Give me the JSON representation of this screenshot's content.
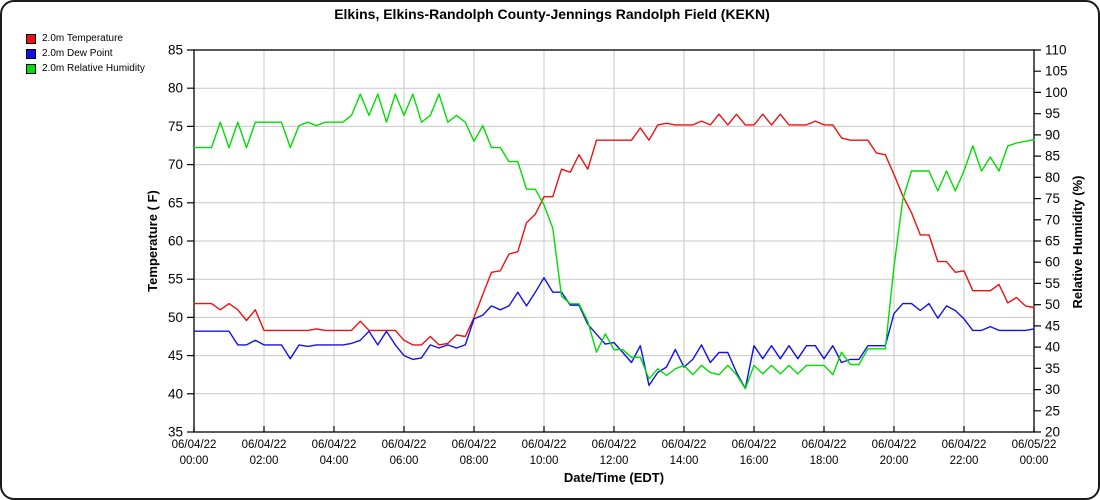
{
  "title": "Elkins, Elkins-Randolph County-Jennings Randolph Field (KEKN)",
  "legend": [
    {
      "label": "2.0m Temperature",
      "color": "#ee1111"
    },
    {
      "label": "2.0m Dew Point",
      "color": "#1111ee"
    },
    {
      "label": "2.0m Relative Humidity",
      "color": "#00dd00"
    }
  ],
  "axes": {
    "left_title": "Temperature ( F)",
    "right_title": "Relative Humidity (%)",
    "bottom_title": "Date/Time (EDT)"
  },
  "colors": {
    "grid": "#c8c8c8",
    "axis": "#000000",
    "background": "#ffffff"
  },
  "chart_data": {
    "type": "line",
    "title": "Elkins, Elkins-Randolph County-Jennings Randolph Field (KEKN)",
    "xlabel": "Date/Time (EDT)",
    "ylabel_left": "Temperature ( F)",
    "ylabel_right": "Relative Humidity (%)",
    "grid": true,
    "legend_position": "top-left",
    "x_unit_hours_from": "06/04/22 00:00 EDT",
    "x_range": [
      0,
      24
    ],
    "y_left_range": [
      35,
      85
    ],
    "y_right_range": [
      20,
      110
    ],
    "y_left_ticks": [
      35,
      40,
      45,
      50,
      55,
      60,
      65,
      70,
      75,
      80,
      85
    ],
    "y_right_ticks": [
      20,
      25,
      30,
      35,
      40,
      45,
      50,
      55,
      60,
      65,
      70,
      75,
      80,
      85,
      90,
      95,
      100,
      105,
      110
    ],
    "x_ticks": [
      {
        "hour": 0,
        "date": "06/04/22",
        "time": "00:00"
      },
      {
        "hour": 2,
        "date": "06/04/22",
        "time": "02:00"
      },
      {
        "hour": 4,
        "date": "06/04/22",
        "time": "04:00"
      },
      {
        "hour": 6,
        "date": "06/04/22",
        "time": "06:00"
      },
      {
        "hour": 8,
        "date": "06/04/22",
        "time": "08:00"
      },
      {
        "hour": 10,
        "date": "06/04/22",
        "time": "10:00"
      },
      {
        "hour": 12,
        "date": "06/04/22",
        "time": "12:00"
      },
      {
        "hour": 14,
        "date": "06/04/22",
        "time": "14:00"
      },
      {
        "hour": 16,
        "date": "06/04/22",
        "time": "16:00"
      },
      {
        "hour": 18,
        "date": "06/04/22",
        "time": "18:00"
      },
      {
        "hour": 20,
        "date": "06/04/22",
        "time": "20:00"
      },
      {
        "hour": 22,
        "date": "06/04/22",
        "time": "22:00"
      },
      {
        "hour": 24,
        "date": "06/05/22",
        "time": "00:00"
      }
    ],
    "x": [
      0,
      0.25,
      0.5,
      0.75,
      1,
      1.25,
      1.5,
      1.75,
      2,
      2.25,
      2.5,
      2.75,
      3,
      3.25,
      3.5,
      3.75,
      4,
      4.25,
      4.5,
      4.75,
      5,
      5.25,
      5.5,
      5.75,
      6,
      6.25,
      6.5,
      6.75,
      7,
      7.25,
      7.5,
      7.75,
      8,
      8.25,
      8.5,
      8.75,
      9,
      9.25,
      9.5,
      9.75,
      10,
      10.25,
      10.5,
      10.75,
      11,
      11.25,
      11.5,
      11.75,
      12,
      12.25,
      12.5,
      12.75,
      13,
      13.25,
      13.5,
      13.75,
      14,
      14.25,
      14.5,
      14.75,
      15,
      15.25,
      15.5,
      15.75,
      16,
      16.25,
      16.5,
      16.75,
      17,
      17.25,
      17.5,
      17.75,
      18,
      18.25,
      18.5,
      18.75,
      19,
      19.25,
      19.5,
      19.75,
      20,
      20.25,
      20.5,
      20.75,
      21,
      21.25,
      21.5,
      21.75,
      22,
      22.25,
      22.5,
      22.75,
      23,
      23.25,
      23.5,
      23.75,
      24
    ],
    "series": [
      {
        "name": "2.0m Temperature",
        "axis": "left",
        "color": "#ee1111",
        "values": [
          51.8,
          51.8,
          51.8,
          51.0,
          51.8,
          51.0,
          49.6,
          51.0,
          48.3,
          48.3,
          48.3,
          48.3,
          48.3,
          48.3,
          48.5,
          48.3,
          48.3,
          48.3,
          48.3,
          49.5,
          48.3,
          48.3,
          48.3,
          48.3,
          47.0,
          46.4,
          46.4,
          47.5,
          46.4,
          46.6,
          47.7,
          47.5,
          50.0,
          53.0,
          55.9,
          56.1,
          58.3,
          58.6,
          62.4,
          63.5,
          65.8,
          65.8,
          69.4,
          69.0,
          71.3,
          69.4,
          73.2,
          73.2,
          73.2,
          73.2,
          73.2,
          74.8,
          73.2,
          75.2,
          75.4,
          75.2,
          75.2,
          75.2,
          75.7,
          75.2,
          76.6,
          75.2,
          76.6,
          75.2,
          75.2,
          76.6,
          75.2,
          76.6,
          75.2,
          75.2,
          75.2,
          75.7,
          75.2,
          75.2,
          73.5,
          73.2,
          73.2,
          73.2,
          71.5,
          71.3,
          68.7,
          65.9,
          63.7,
          60.8,
          60.8,
          57.3,
          57.3,
          55.9,
          56.1,
          53.5,
          53.5,
          53.5,
          54.3,
          51.9,
          52.6,
          51.5,
          51.3
        ]
      },
      {
        "name": "2.0m Dew Point",
        "axis": "left",
        "color": "#1111ee",
        "values": [
          48.2,
          48.2,
          48.2,
          48.2,
          48.2,
          46.4,
          46.4,
          47.0,
          46.4,
          46.4,
          46.4,
          44.6,
          46.4,
          46.2,
          46.4,
          46.4,
          46.4,
          46.4,
          46.6,
          47.0,
          48.2,
          46.4,
          48.2,
          46.4,
          45.0,
          44.5,
          44.7,
          46.4,
          46.0,
          46.4,
          46.0,
          46.4,
          49.8,
          50.3,
          51.5,
          51.0,
          51.5,
          53.3,
          51.5,
          53.3,
          55.2,
          53.3,
          53.3,
          51.6,
          51.6,
          49.1,
          47.8,
          46.5,
          46.7,
          45.4,
          44.1,
          46.3,
          41.1,
          42.8,
          43.5,
          45.8,
          43.5,
          44.5,
          46.4,
          44.1,
          45.4,
          45.4,
          42.8,
          40.7,
          46.3,
          44.6,
          46.3,
          44.6,
          46.3,
          44.6,
          46.3,
          46.3,
          44.6,
          46.3,
          44.1,
          44.5,
          44.5,
          46.3,
          46.3,
          46.3,
          50.5,
          51.8,
          51.8,
          50.9,
          51.8,
          49.9,
          51.5,
          50.9,
          49.8,
          48.3,
          48.3,
          48.8,
          48.3,
          48.3,
          48.3,
          48.3,
          48.5
        ]
      },
      {
        "name": "2.0m Relative Humidity",
        "axis": "right",
        "color": "#00dd00",
        "values": [
          87,
          87,
          87,
          93,
          87,
          93,
          87,
          93,
          93,
          93,
          93,
          87,
          92.2,
          93,
          92.2,
          93,
          93,
          93,
          94.6,
          99.6,
          94.6,
          99.6,
          93,
          99.6,
          94.6,
          99.6,
          93,
          94.6,
          99.6,
          93,
          94.6,
          93,
          88.5,
          92.2,
          87,
          87,
          83.7,
          83.7,
          77.2,
          77.2,
          73.5,
          68.0,
          52.0,
          50.2,
          50.2,
          46.0,
          38.8,
          43.1,
          39.4,
          39.4,
          37.6,
          37.6,
          32.5,
          34.9,
          33.3,
          34.9,
          35.7,
          33.5,
          35.7,
          34.0,
          33.5,
          35.7,
          33.5,
          30.2,
          35.7,
          33.7,
          35.7,
          33.7,
          35.7,
          33.7,
          35.7,
          35.7,
          35.7,
          33.5,
          38.8,
          35.9,
          35.9,
          39.6,
          39.6,
          39.6,
          59.0,
          74.8,
          81.5,
          81.5,
          81.5,
          76.8,
          81.5,
          76.8,
          81.5,
          87.4,
          81.5,
          84.8,
          81.5,
          87.4,
          88.1,
          88.5,
          88.9
        ]
      }
    ]
  }
}
